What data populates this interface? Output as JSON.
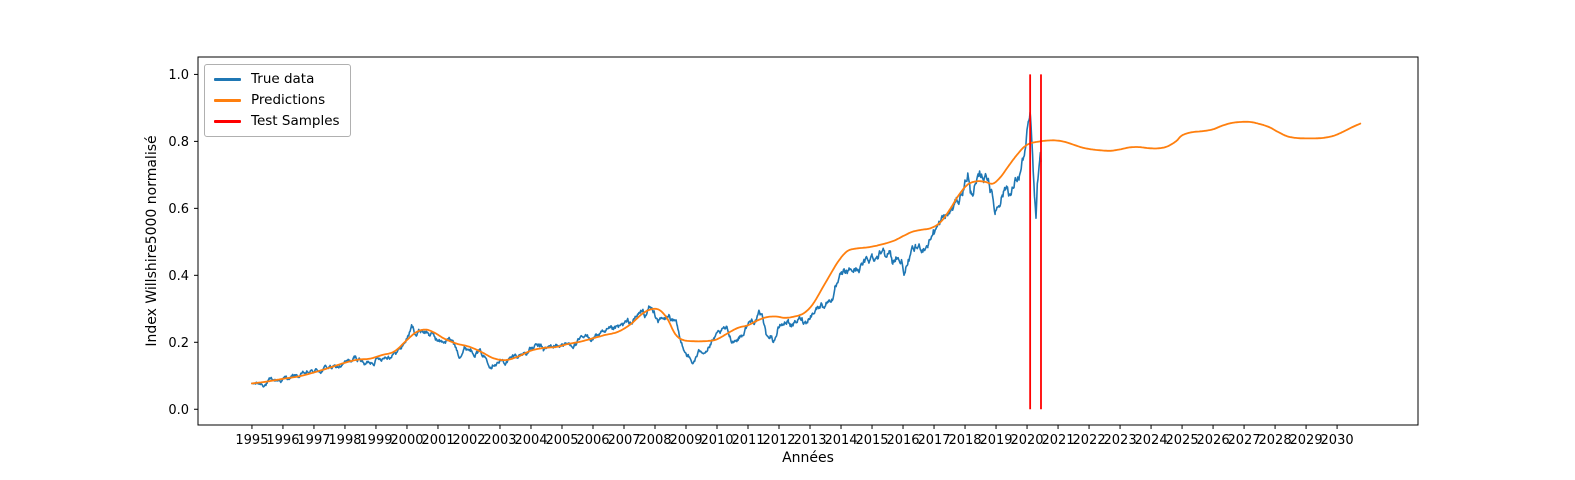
{
  "figure": {
    "background": "#ffffff",
    "text_color": "#000000"
  },
  "chart_data": {
    "type": "line",
    "title": "",
    "xlabel": "Années",
    "ylabel": "Index Willshire5000 normalisé",
    "grid": false,
    "legend_position": "upper left",
    "x_range": [
      1993.26,
      2032.61
    ],
    "y_range": [
      -0.047,
      1.052
    ],
    "x_ticks": [
      1995,
      1996,
      1997,
      1998,
      1999,
      2000,
      2001,
      2002,
      2003,
      2004,
      2005,
      2006,
      2007,
      2008,
      2009,
      2010,
      2011,
      2012,
      2013,
      2014,
      2015,
      2016,
      2017,
      2018,
      2019,
      2020,
      2021,
      2022,
      2023,
      2024,
      2025,
      2026,
      2027,
      2028,
      2029,
      2030
    ],
    "y_ticks": [
      "0.0",
      "0.2",
      "0.4",
      "0.6",
      "0.8",
      "1.0"
    ],
    "y_tick_values": [
      0.0,
      0.2,
      0.4,
      0.6,
      0.8,
      1.0
    ],
    "noise_seed": 1234567,
    "noise_base_amplitude": 0.012,
    "series": [
      {
        "name": "True data",
        "color": "#1f77b4",
        "style": "noisy",
        "line_width": 1.6,
        "points": [
          [
            1995.0,
            0.073
          ],
          [
            1995.25,
            0.076
          ],
          [
            1995.5,
            0.08
          ],
          [
            1995.75,
            0.084
          ],
          [
            1996.0,
            0.09
          ],
          [
            1996.25,
            0.094
          ],
          [
            1996.5,
            0.097
          ],
          [
            1996.75,
            0.102
          ],
          [
            1997.0,
            0.11
          ],
          [
            1997.25,
            0.118
          ],
          [
            1997.5,
            0.126
          ],
          [
            1997.7,
            0.121
          ],
          [
            1997.9,
            0.13
          ],
          [
            1998.1,
            0.138
          ],
          [
            1998.3,
            0.146
          ],
          [
            1998.5,
            0.151
          ],
          [
            1998.65,
            0.131
          ],
          [
            1998.8,
            0.141
          ],
          [
            1999.0,
            0.153
          ],
          [
            1999.2,
            0.16
          ],
          [
            1999.4,
            0.166
          ],
          [
            1999.6,
            0.171
          ],
          [
            1999.8,
            0.183
          ],
          [
            2000.0,
            0.213
          ],
          [
            2000.15,
            0.243
          ],
          [
            2000.3,
            0.227
          ],
          [
            2000.5,
            0.239
          ],
          [
            2000.7,
            0.229
          ],
          [
            2000.9,
            0.214
          ],
          [
            2001.1,
            0.199
          ],
          [
            2001.3,
            0.209
          ],
          [
            2001.5,
            0.197
          ],
          [
            2001.68,
            0.167
          ],
          [
            2001.85,
            0.186
          ],
          [
            2002.05,
            0.184
          ],
          [
            2002.3,
            0.177
          ],
          [
            2002.5,
            0.157
          ],
          [
            2002.7,
            0.141
          ],
          [
            2002.85,
            0.153
          ],
          [
            2003.0,
            0.149
          ],
          [
            2003.15,
            0.141
          ],
          [
            2003.35,
            0.15
          ],
          [
            2003.6,
            0.161
          ],
          [
            2003.8,
            0.17
          ],
          [
            2004.0,
            0.181
          ],
          [
            2004.2,
            0.184
          ],
          [
            2004.4,
            0.176
          ],
          [
            2004.6,
            0.181
          ],
          [
            2004.8,
            0.188
          ],
          [
            2005.0,
            0.195
          ],
          [
            2005.2,
            0.192
          ],
          [
            2005.4,
            0.199
          ],
          [
            2005.6,
            0.202
          ],
          [
            2005.8,
            0.208
          ],
          [
            2006.0,
            0.216
          ],
          [
            2006.2,
            0.226
          ],
          [
            2006.4,
            0.216
          ],
          [
            2006.6,
            0.224
          ],
          [
            2006.8,
            0.233
          ],
          [
            2007.0,
            0.246
          ],
          [
            2007.2,
            0.254
          ],
          [
            2007.4,
            0.27
          ],
          [
            2007.55,
            0.29
          ],
          [
            2007.7,
            0.281
          ],
          [
            2007.82,
            0.303
          ],
          [
            2007.95,
            0.288
          ],
          [
            2008.1,
            0.27
          ],
          [
            2008.3,
            0.262
          ],
          [
            2008.45,
            0.273
          ],
          [
            2008.6,
            0.258
          ],
          [
            2008.72,
            0.238
          ],
          [
            2008.82,
            0.196
          ],
          [
            2008.92,
            0.186
          ],
          [
            2009.05,
            0.166
          ],
          [
            2009.2,
            0.133
          ],
          [
            2009.33,
            0.155
          ],
          [
            2009.5,
            0.175
          ],
          [
            2009.7,
            0.19
          ],
          [
            2009.9,
            0.205
          ],
          [
            2010.1,
            0.218
          ],
          [
            2010.3,
            0.231
          ],
          [
            2010.45,
            0.206
          ],
          [
            2010.62,
            0.212
          ],
          [
            2010.8,
            0.225
          ],
          [
            2011.0,
            0.255
          ],
          [
            2011.2,
            0.27
          ],
          [
            2011.35,
            0.28
          ],
          [
            2011.5,
            0.262
          ],
          [
            2011.62,
            0.21
          ],
          [
            2011.72,
            0.226
          ],
          [
            2011.82,
            0.207
          ],
          [
            2011.95,
            0.235
          ],
          [
            2012.1,
            0.252
          ],
          [
            2012.3,
            0.266
          ],
          [
            2012.45,
            0.25
          ],
          [
            2012.6,
            0.262
          ],
          [
            2012.75,
            0.268
          ],
          [
            2012.88,
            0.262
          ],
          [
            2013.0,
            0.288
          ],
          [
            2013.2,
            0.304
          ],
          [
            2013.4,
            0.316
          ],
          [
            2013.6,
            0.327
          ],
          [
            2013.8,
            0.35
          ],
          [
            2014.0,
            0.385
          ],
          [
            2014.2,
            0.4
          ],
          [
            2014.4,
            0.413
          ],
          [
            2014.6,
            0.424
          ],
          [
            2014.8,
            0.435
          ],
          [
            2015.0,
            0.455
          ],
          [
            2015.2,
            0.465
          ],
          [
            2015.4,
            0.49
          ],
          [
            2015.55,
            0.478
          ],
          [
            2015.67,
            0.428
          ],
          [
            2015.8,
            0.463
          ],
          [
            2015.95,
            0.44
          ],
          [
            2016.07,
            0.408
          ],
          [
            2016.2,
            0.445
          ],
          [
            2016.4,
            0.47
          ],
          [
            2016.6,
            0.48
          ],
          [
            2016.8,
            0.5
          ],
          [
            2017.0,
            0.538
          ],
          [
            2017.2,
            0.552
          ],
          [
            2017.4,
            0.57
          ],
          [
            2017.6,
            0.596
          ],
          [
            2017.8,
            0.625
          ],
          [
            2018.0,
            0.682
          ],
          [
            2018.09,
            0.71
          ],
          [
            2018.17,
            0.645
          ],
          [
            2018.3,
            0.662
          ],
          [
            2018.45,
            0.673
          ],
          [
            2018.6,
            0.69
          ],
          [
            2018.75,
            0.7
          ],
          [
            2018.85,
            0.655
          ],
          [
            2018.97,
            0.59
          ],
          [
            2019.05,
            0.615
          ],
          [
            2019.2,
            0.655
          ],
          [
            2019.35,
            0.672
          ],
          [
            2019.5,
            0.648
          ],
          [
            2019.62,
            0.678
          ],
          [
            2019.75,
            0.7
          ],
          [
            2019.87,
            0.745
          ],
          [
            2019.96,
            0.78
          ],
          [
            2020.04,
            0.835
          ],
          [
            2020.11,
            0.859
          ],
          [
            2020.16,
            0.77
          ],
          [
            2020.2,
            0.69
          ],
          [
            2020.25,
            0.6
          ],
          [
            2020.29,
            0.562
          ],
          [
            2020.33,
            0.65
          ],
          [
            2020.37,
            0.693
          ],
          [
            2020.41,
            0.716
          ],
          [
            2020.45,
            0.74
          ]
        ]
      },
      {
        "name": "Predictions",
        "color": "#ff7f0e",
        "style": "smooth",
        "line_width": 1.8,
        "points": [
          [
            1995.0,
            0.077
          ],
          [
            1995.5,
            0.083
          ],
          [
            1996.0,
            0.091
          ],
          [
            1996.5,
            0.098
          ],
          [
            1997.0,
            0.11
          ],
          [
            1997.5,
            0.124
          ],
          [
            1998.0,
            0.139
          ],
          [
            1998.4,
            0.148
          ],
          [
            1998.8,
            0.151
          ],
          [
            1999.2,
            0.162
          ],
          [
            1999.6,
            0.173
          ],
          [
            2000.0,
            0.207
          ],
          [
            2000.3,
            0.23
          ],
          [
            2000.6,
            0.238
          ],
          [
            2000.9,
            0.228
          ],
          [
            2001.2,
            0.211
          ],
          [
            2001.6,
            0.196
          ],
          [
            2002.0,
            0.187
          ],
          [
            2002.4,
            0.171
          ],
          [
            2002.8,
            0.152
          ],
          [
            2003.2,
            0.147
          ],
          [
            2003.6,
            0.158
          ],
          [
            2004.0,
            0.175
          ],
          [
            2004.4,
            0.183
          ],
          [
            2004.8,
            0.186
          ],
          [
            2005.2,
            0.195
          ],
          [
            2005.6,
            0.202
          ],
          [
            2006.0,
            0.212
          ],
          [
            2006.4,
            0.222
          ],
          [
            2006.8,
            0.231
          ],
          [
            2007.2,
            0.253
          ],
          [
            2007.6,
            0.286
          ],
          [
            2007.9,
            0.299
          ],
          [
            2008.15,
            0.296
          ],
          [
            2008.4,
            0.27
          ],
          [
            2008.65,
            0.225
          ],
          [
            2008.9,
            0.207
          ],
          [
            2009.3,
            0.203
          ],
          [
            2009.7,
            0.204
          ],
          [
            2010.0,
            0.209
          ],
          [
            2010.4,
            0.23
          ],
          [
            2010.7,
            0.244
          ],
          [
            2011.0,
            0.251
          ],
          [
            2011.3,
            0.265
          ],
          [
            2011.6,
            0.275
          ],
          [
            2011.9,
            0.277
          ],
          [
            2012.2,
            0.273
          ],
          [
            2012.5,
            0.277
          ],
          [
            2012.8,
            0.287
          ],
          [
            2013.1,
            0.315
          ],
          [
            2013.5,
            0.378
          ],
          [
            2013.9,
            0.44
          ],
          [
            2014.2,
            0.472
          ],
          [
            2014.5,
            0.48
          ],
          [
            2014.9,
            0.484
          ],
          [
            2015.3,
            0.492
          ],
          [
            2015.7,
            0.503
          ],
          [
            2016.0,
            0.517
          ],
          [
            2016.3,
            0.53
          ],
          [
            2016.6,
            0.536
          ],
          [
            2016.9,
            0.541
          ],
          [
            2017.2,
            0.558
          ],
          [
            2017.5,
            0.595
          ],
          [
            2017.8,
            0.64
          ],
          [
            2018.1,
            0.672
          ],
          [
            2018.4,
            0.681
          ],
          [
            2018.65,
            0.679
          ],
          [
            2018.9,
            0.674
          ],
          [
            2019.15,
            0.694
          ],
          [
            2019.4,
            0.726
          ],
          [
            2019.65,
            0.757
          ],
          [
            2019.9,
            0.783
          ],
          [
            2020.1,
            0.794
          ],
          [
            2020.35,
            0.799
          ],
          [
            2020.6,
            0.802
          ],
          [
            2020.9,
            0.803
          ],
          [
            2021.2,
            0.799
          ],
          [
            2021.5,
            0.79
          ],
          [
            2021.8,
            0.781
          ],
          [
            2022.1,
            0.776
          ],
          [
            2022.4,
            0.773
          ],
          [
            2022.7,
            0.772
          ],
          [
            2023.0,
            0.776
          ],
          [
            2023.3,
            0.782
          ],
          [
            2023.6,
            0.783
          ],
          [
            2023.9,
            0.78
          ],
          [
            2024.2,
            0.779
          ],
          [
            2024.5,
            0.784
          ],
          [
            2024.8,
            0.8
          ],
          [
            2025.0,
            0.818
          ],
          [
            2025.3,
            0.827
          ],
          [
            2025.7,
            0.831
          ],
          [
            2026.0,
            0.836
          ],
          [
            2026.3,
            0.847
          ],
          [
            2026.6,
            0.855
          ],
          [
            2026.9,
            0.858
          ],
          [
            2027.2,
            0.858
          ],
          [
            2027.5,
            0.852
          ],
          [
            2027.8,
            0.843
          ],
          [
            2028.1,
            0.828
          ],
          [
            2028.4,
            0.815
          ],
          [
            2028.7,
            0.81
          ],
          [
            2029.0,
            0.809
          ],
          [
            2029.3,
            0.809
          ],
          [
            2029.6,
            0.811
          ],
          [
            2029.9,
            0.817
          ],
          [
            2030.2,
            0.829
          ],
          [
            2030.5,
            0.843
          ],
          [
            2030.75,
            0.853
          ]
        ]
      },
      {
        "name": "Test Samples",
        "color": "#ff0000",
        "style": "vline",
        "line_width": 1.8,
        "x_values": [
          2020.1,
          2020.45
        ],
        "y_span": [
          0.0,
          1.0
        ]
      }
    ]
  }
}
